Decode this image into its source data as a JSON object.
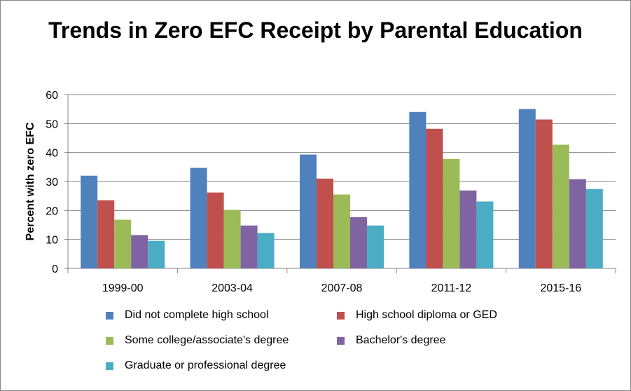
{
  "chart_data": {
    "type": "bar",
    "title": "Trends in Zero EFC Receipt by Parental Education",
    "xlabel": "",
    "ylabel": "Percent with zero EFC",
    "ylim": [
      0,
      60
    ],
    "yticks": [
      0,
      10,
      20,
      30,
      40,
      50,
      60
    ],
    "grid": true,
    "legend_position": "bottom",
    "categories": [
      "1999-00",
      "2003-04",
      "2007-08",
      "2011-12",
      "2015-16"
    ],
    "series": [
      {
        "name": "Did not complete high school",
        "color": "#4F81BD",
        "values": [
          32.0,
          34.7,
          39.3,
          54.0,
          55.0
        ]
      },
      {
        "name": "High school diploma or GED",
        "color": "#C0504D",
        "values": [
          23.5,
          26.2,
          31.0,
          48.2,
          51.4
        ]
      },
      {
        "name": "Some college/associate's degree",
        "color": "#9BBB59",
        "values": [
          16.8,
          20.2,
          25.5,
          37.8,
          42.7
        ]
      },
      {
        "name": "Bachelor's degree",
        "color": "#8064A2",
        "values": [
          11.5,
          14.8,
          17.7,
          26.9,
          30.8
        ]
      },
      {
        "name": "Graduate or professional degree",
        "color": "#4BACC6",
        "values": [
          9.5,
          12.2,
          14.8,
          23.1,
          27.4
        ]
      }
    ]
  }
}
